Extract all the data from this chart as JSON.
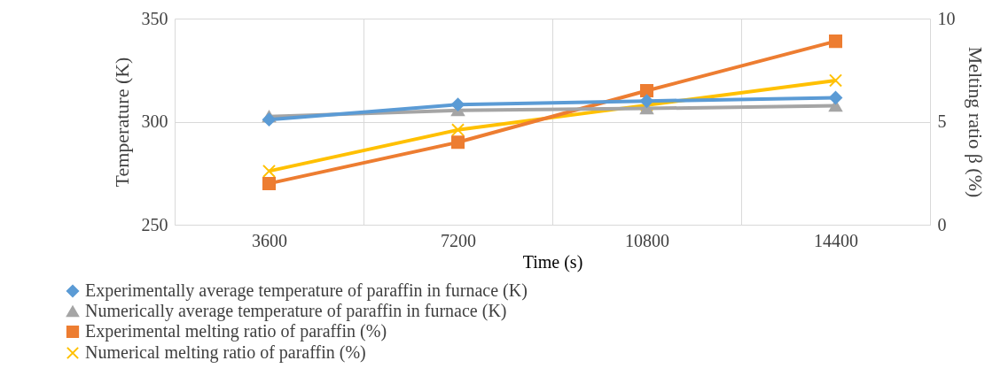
{
  "chart_data": {
    "type": "line",
    "xlabel": "Time (s)",
    "ylabel": "Temperature (K)",
    "y2label": "Melting ratio β (%)",
    "categories": [
      "3600",
      "7200",
      "10800",
      "14400"
    ],
    "ylim": [
      250,
      350
    ],
    "yticks": [
      250,
      300,
      350
    ],
    "y2lim": [
      0,
      10
    ],
    "y2ticks": [
      0,
      5,
      10
    ],
    "grid": true,
    "legend": "bottom",
    "line_style": "solid",
    "series": [
      {
        "name": "Experimentally average temperature of paraffin in furnace (K)",
        "color": "#5b9bd5",
        "marker": "diamond",
        "values": [
          301,
          308.3,
          310,
          311.6
        ]
      },
      {
        "name": "Numerically average temperature of paraffin in furnace (K)",
        "color": "#a5a5a5",
        "marker": "triangle",
        "values": [
          302.5,
          305.5,
          306.4,
          307.7
        ]
      },
      {
        "name": "Experimental melting ratio of paraffin (%)",
        "color": "#ed7d31",
        "marker": "square",
        "axis": "y2",
        "values": [
          2.0,
          4.0,
          6.5,
          8.9
        ]
      },
      {
        "name": "Numerical melting ratio of paraffin (%)",
        "color": "#ffc000",
        "marker": "cross",
        "axis": "y2",
        "values": [
          2.6,
          4.6,
          5.8,
          7.0
        ]
      }
    ]
  }
}
